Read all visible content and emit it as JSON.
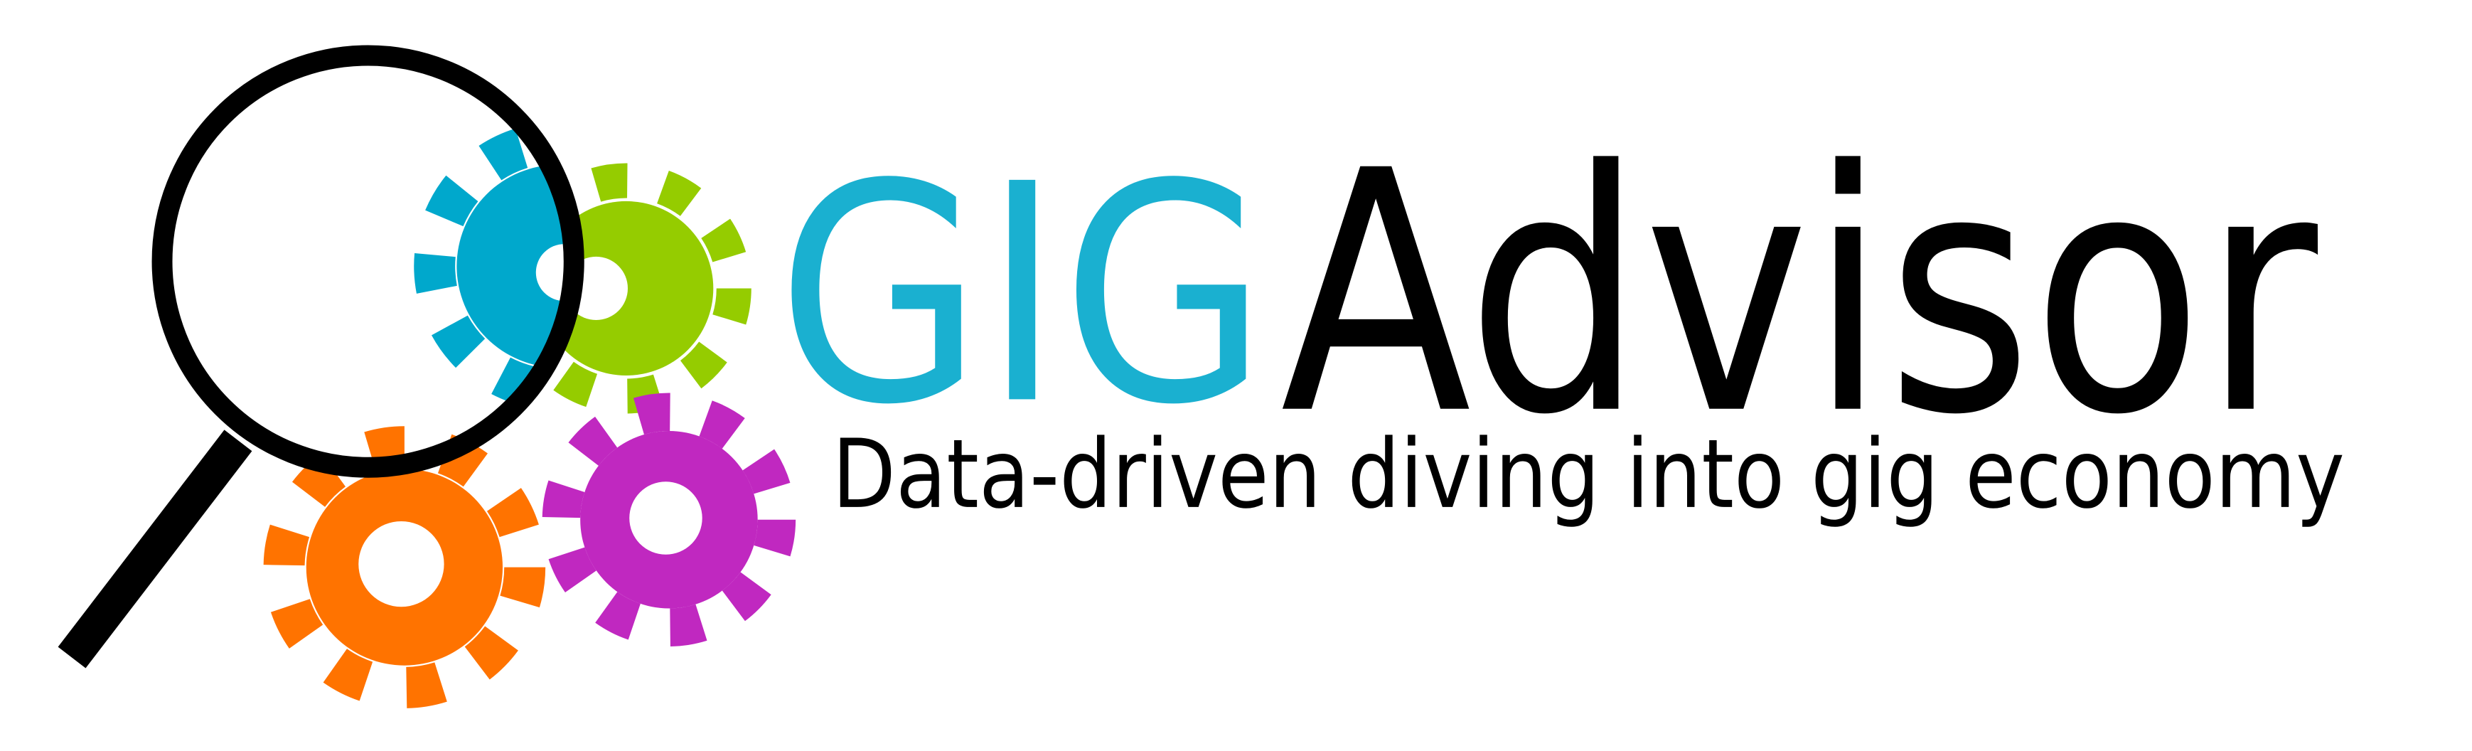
{
  "logo": {
    "brand_first": "GIG",
    "brand_second": "Advisor",
    "tagline": "Data-driven diving into gig economy"
  }
}
